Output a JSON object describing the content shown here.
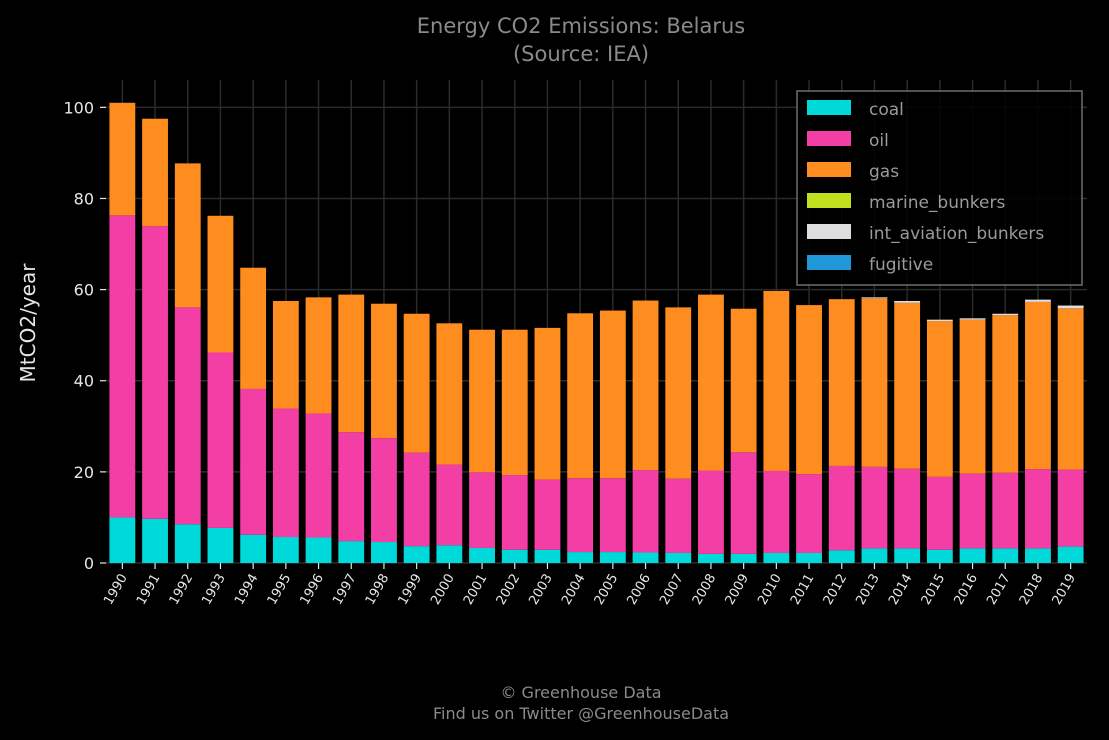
{
  "title_line1": "Energy CO2 Emissions: Belarus",
  "title_line2": "(Source: IEA)",
  "footer_line1": "© Greenhouse Data",
  "footer_line2": "Find us on Twitter @GreenhouseData",
  "chart_data": {
    "type": "bar",
    "stacked": true,
    "title": "Energy CO2 Emissions: Belarus (Source: IEA)",
    "ylabel": "MtCO2/year",
    "xlabel": "",
    "ylim": [
      0,
      106
    ],
    "yticks": [
      0,
      20,
      40,
      60,
      80,
      100
    ],
    "grid": true,
    "legend_position": "top-right",
    "categories": [
      "1990",
      "1991",
      "1992",
      "1993",
      "1994",
      "1995",
      "1996",
      "1997",
      "1998",
      "1999",
      "2000",
      "2001",
      "2002",
      "2003",
      "2004",
      "2005",
      "2006",
      "2007",
      "2008",
      "2009",
      "2010",
      "2011",
      "2012",
      "2013",
      "2014",
      "2015",
      "2016",
      "2017",
      "2018",
      "2019"
    ],
    "series": [
      {
        "name": "coal",
        "color": "#00d9d9",
        "values": [
          10,
          9.7,
          8.5,
          7.7,
          6.2,
          5.7,
          5.6,
          4.8,
          4.6,
          3.7,
          3.9,
          3.3,
          2.9,
          2.9,
          2.4,
          2.4,
          2.3,
          2.2,
          2.0,
          2.0,
          2.2,
          2.2,
          2.8,
          3.2,
          3.2,
          2.9,
          3.2,
          3.2,
          3.2,
          3.6
        ]
      },
      {
        "name": "oil",
        "color": "#f23ea5",
        "values": [
          66.3,
          64.2,
          47.6,
          38.5,
          32.0,
          28.2,
          27.2,
          23.9,
          22.8,
          20.5,
          17.7,
          16.6,
          16.4,
          15.4,
          16.2,
          16.2,
          18.1,
          16.3,
          18.3,
          22.3,
          18.0,
          17.3,
          18.5,
          17.9,
          17.5,
          16.0,
          16.4,
          16.6,
          17.4,
          16.9
        ]
      },
      {
        "name": "gas",
        "color": "#ff8c1f",
        "values": [
          24.7,
          23.6,
          31.6,
          30.0,
          26.6,
          23.6,
          25.5,
          30.2,
          29.5,
          30.5,
          31.0,
          31.3,
          31.9,
          33.3,
          36.2,
          36.8,
          37.2,
          37.6,
          38.6,
          31.5,
          39.5,
          37.1,
          36.6,
          37.0,
          36.4,
          34.2,
          33.8,
          34.6,
          36.7,
          35.4
        ]
      },
      {
        "name": "marine_bunkers",
        "color": "#bfdf1f",
        "values": [
          0,
          0,
          0,
          0,
          0,
          0,
          0,
          0,
          0,
          0,
          0,
          0,
          0,
          0,
          0,
          0,
          0,
          0,
          0,
          0,
          0,
          0,
          0,
          0,
          0,
          0,
          0,
          0,
          0,
          0
        ]
      },
      {
        "name": "int_aviation_bunkers",
        "color": "#dedede",
        "values": [
          0,
          0,
          0,
          0,
          0,
          0,
          0,
          0,
          0,
          0,
          0,
          0,
          0,
          0,
          0,
          0,
          0,
          0,
          0,
          0,
          0,
          0,
          0,
          0.2,
          0.4,
          0.3,
          0.3,
          0.3,
          0.5,
          0.6
        ]
      },
      {
        "name": "fugitive",
        "color": "#1e98d8",
        "values": [
          0,
          0,
          0,
          0,
          0,
          0,
          0,
          0,
          0,
          0,
          0,
          0,
          0,
          0,
          0,
          0,
          0,
          0,
          0,
          0,
          0,
          0,
          0,
          0,
          0,
          0,
          0,
          0,
          0,
          0
        ]
      }
    ]
  }
}
